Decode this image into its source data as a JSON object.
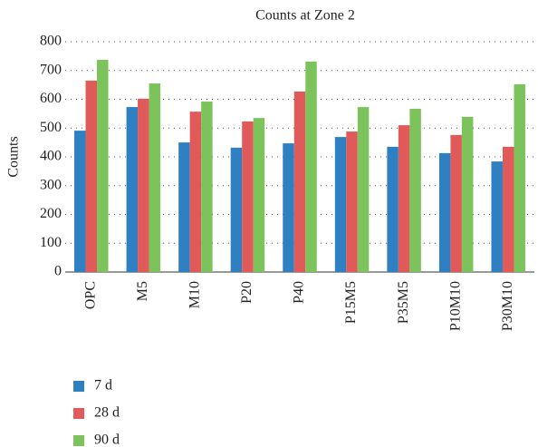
{
  "chart_data": {
    "type": "bar",
    "title": "Counts at Zone 2",
    "y_label": "Counts",
    "categories": [
      "OPC",
      "M5",
      "M10",
      "P20",
      "P40",
      "P15M5",
      "P35M5",
      "P10M10",
      "P30M10"
    ],
    "series": [
      {
        "name": "7 d",
        "color": "#2f80c3",
        "values": [
          491,
          573,
          450,
          432,
          447,
          469,
          435,
          413,
          384
        ]
      },
      {
        "name": "28 d",
        "color": "#e05a5a",
        "values": [
          665,
          602,
          557,
          523,
          627,
          488,
          510,
          476,
          435
        ]
      },
      {
        "name": "90 d",
        "color": "#7cc35c",
        "values": [
          737,
          655,
          592,
          535,
          731,
          573,
          567,
          539,
          652
        ]
      }
    ],
    "ylim": [
      0,
      800
    ],
    "yticks": [
      0,
      100,
      200,
      300,
      400,
      500,
      600,
      700,
      800
    ],
    "grid": true
  }
}
